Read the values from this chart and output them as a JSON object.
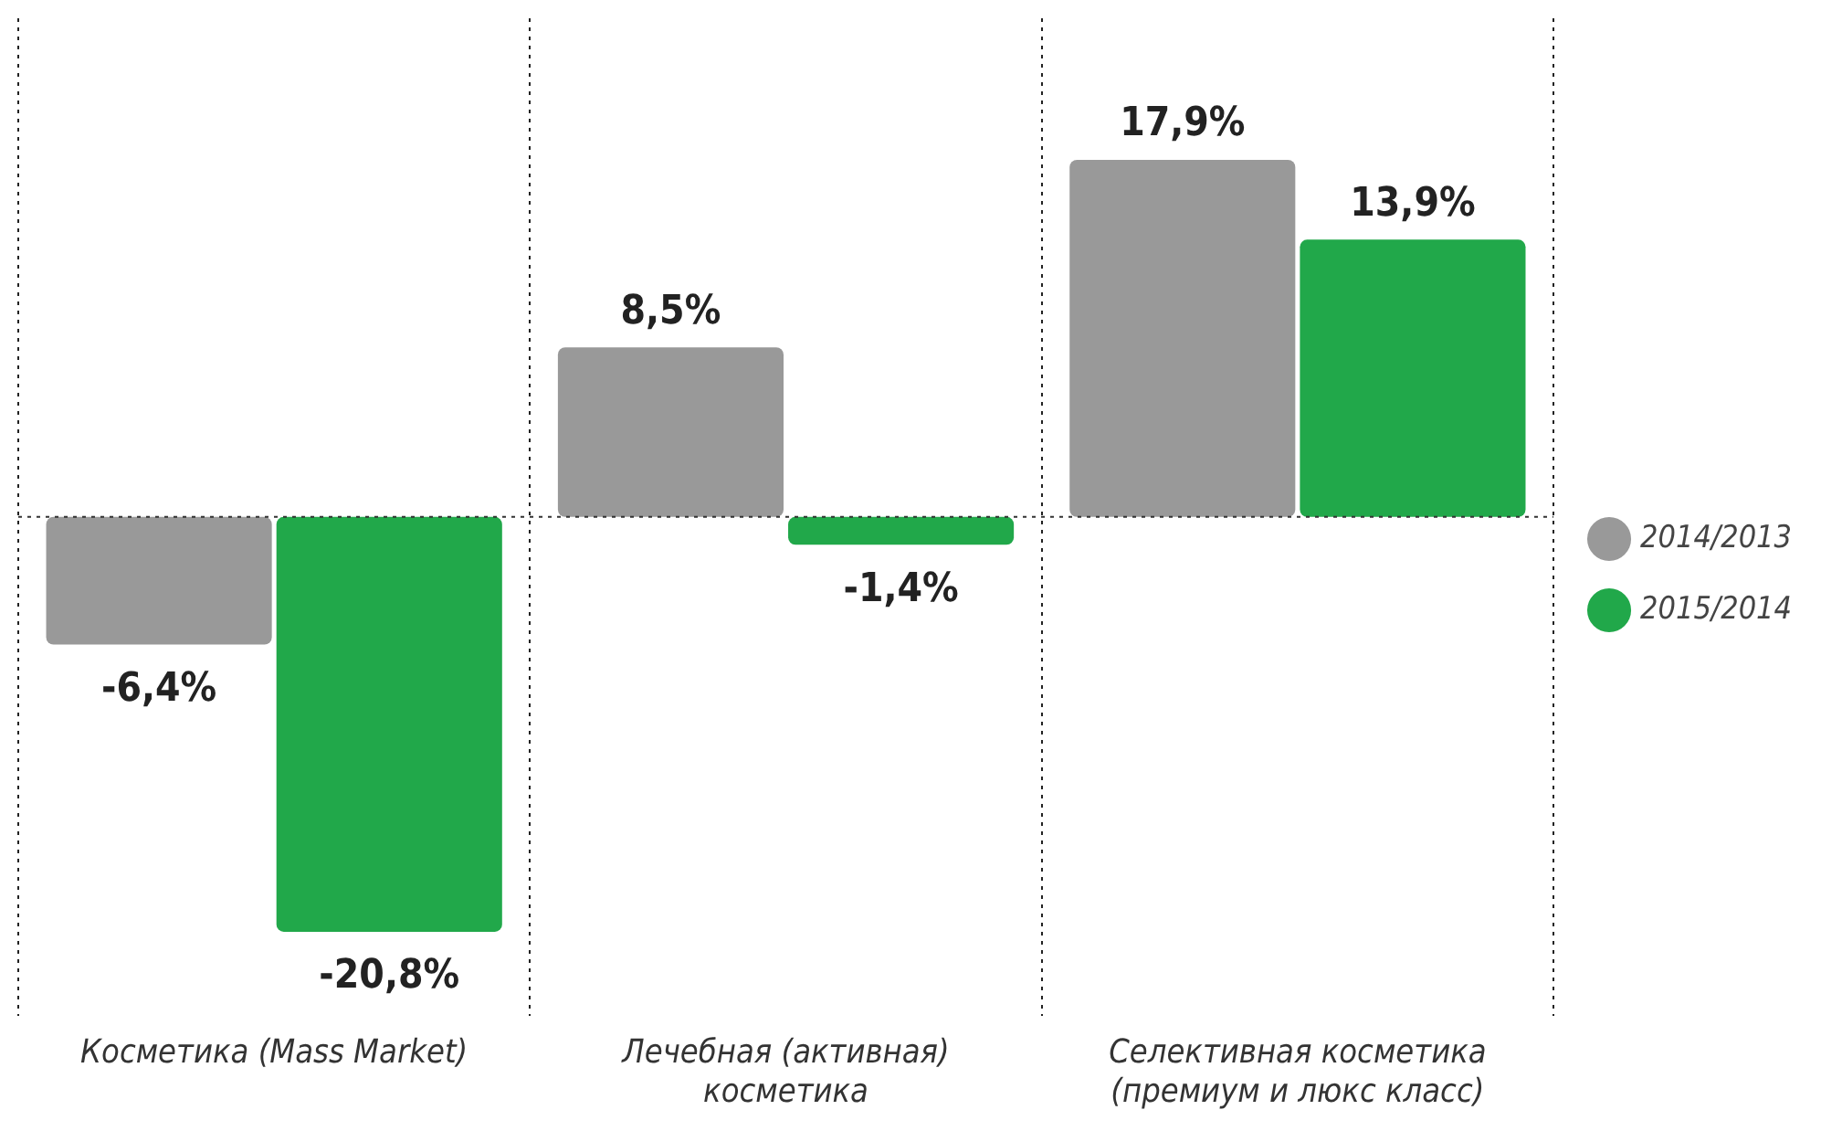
{
  "chart_data": {
    "type": "bar",
    "categories": [
      "Косметика (Mass Market)",
      "Лечебная (активная) косметика",
      "Селективная косметика (премиум и люкс класс)"
    ],
    "series": [
      {
        "name": "2014/2013",
        "color": "#999999",
        "values": [
          -6.4,
          8.5,
          17.9
        ],
        "value_labels": [
          "-6,4%",
          "8,5%",
          "17,9%"
        ]
      },
      {
        "name": "2015/2014",
        "color": "#21a84a",
        "values": [
          -20.8,
          -1.4,
          13.9
        ],
        "value_labels": [
          "-20,8%",
          "-1,4%",
          "13,9%"
        ]
      }
    ],
    "ref_lines": [
      {
        "axis": "y",
        "value": 0,
        "line_style": "dotted",
        "color": "#333333"
      }
    ],
    "grid": "x",
    "legend": "right"
  }
}
